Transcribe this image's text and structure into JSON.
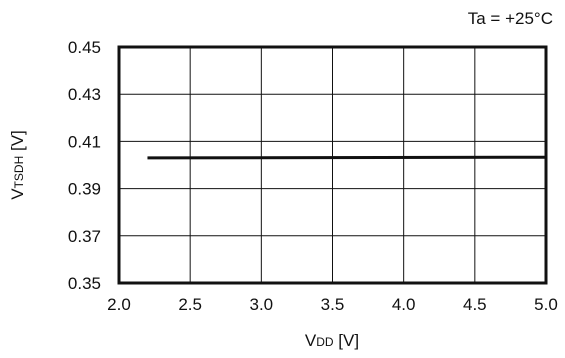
{
  "chart_data": {
    "type": "line",
    "annotation": "Ta = +25°C",
    "xlabel": {
      "main": "V",
      "sub": "DD",
      "unit": " [V]"
    },
    "ylabel": {
      "main": "V",
      "sub": "TSDH",
      "unit": " [V]"
    },
    "xlim": [
      2.0,
      5.0
    ],
    "ylim": [
      0.35,
      0.45
    ],
    "x_ticks": [
      "2.0",
      "2.5",
      "3.0",
      "3.5",
      "4.0",
      "4.5",
      "5.0"
    ],
    "y_ticks": [
      "0.45",
      "0.43",
      "0.41",
      "0.39",
      "0.37",
      "0.35"
    ],
    "grid": true,
    "series": [
      {
        "x": [
          2.2,
          5.0
        ],
        "y": [
          0.403,
          0.4033
        ]
      }
    ]
  }
}
